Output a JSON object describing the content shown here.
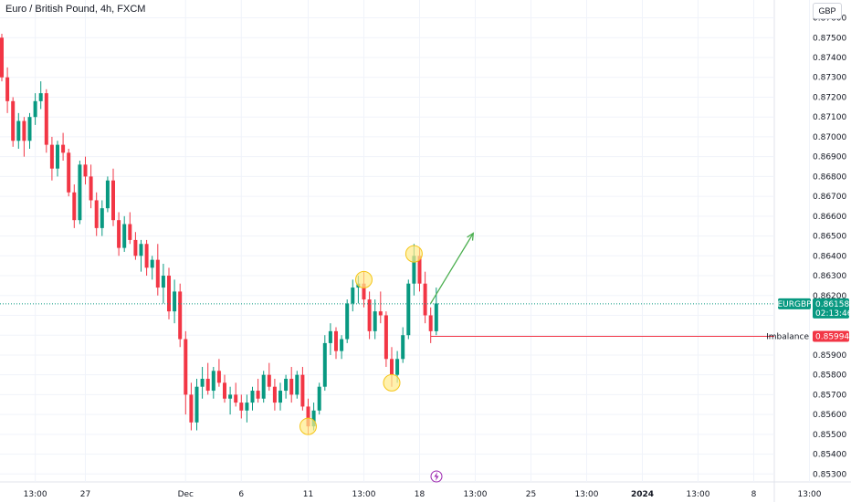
{
  "header": {
    "title": "Euro / British Pound, 4h, FXCM",
    "currency_button": "GBP"
  },
  "chart_data": {
    "type": "candlestick",
    "symbol": "EURGBP",
    "y_ticks": [
      0.853,
      0.854,
      0.855,
      0.856,
      0.857,
      0.858,
      0.859,
      0.86,
      0.861,
      0.862,
      0.863,
      0.864,
      0.865,
      0.866,
      0.867,
      0.868,
      0.869,
      0.87,
      0.871,
      0.872,
      0.873,
      0.874,
      0.875,
      0.876
    ],
    "y_tick_labels": [
      "0.85300",
      "0.85400",
      "0.85500",
      "0.85600",
      "0.85700",
      "0.85800",
      "0.85900",
      "0.86000",
      "0.86100",
      "0.86200",
      "0.86300",
      "0.86400",
      "0.86500",
      "0.86600",
      "0.86700",
      "0.86800",
      "0.86900",
      "0.87000",
      "0.87100",
      "0.87200",
      "0.87300",
      "0.87400",
      "0.87500",
      "0.87600"
    ],
    "ylim": [
      0.8526,
      0.8769
    ],
    "x_ticks": [
      {
        "label": "13:00",
        "i": 6,
        "bold": false
      },
      {
        "label": "27",
        "i": 15,
        "bold": false
      },
      {
        "label": "Dec",
        "i": 33,
        "bold": false
      },
      {
        "label": "6",
        "i": 43,
        "bold": false
      },
      {
        "label": "11",
        "i": 55,
        "bold": false
      },
      {
        "label": "13:00",
        "i": 65,
        "bold": false
      },
      {
        "label": "18",
        "i": 75,
        "bold": false
      },
      {
        "label": "13:00",
        "i": 85,
        "bold": false
      },
      {
        "label": "25",
        "i": 95,
        "bold": false
      },
      {
        "label": "13:00",
        "i": 105,
        "bold": false
      },
      {
        "label": "2024",
        "i": 115,
        "bold": true
      },
      {
        "label": "13:00",
        "i": 125,
        "bold": false
      },
      {
        "label": "8",
        "i": 135,
        "bold": false
      },
      {
        "label": "13:00",
        "i": 145,
        "bold": false
      }
    ],
    "candles": [
      [
        0.875,
        0.8752,
        0.8728,
        0.873
      ],
      [
        0.873,
        0.8735,
        0.8712,
        0.8718
      ],
      [
        0.8718,
        0.872,
        0.8695,
        0.8698
      ],
      [
        0.8698,
        0.8712,
        0.8694,
        0.8708
      ],
      [
        0.8708,
        0.871,
        0.869,
        0.8698
      ],
      [
        0.8698,
        0.8712,
        0.8694,
        0.871
      ],
      [
        0.871,
        0.8722,
        0.8706,
        0.8718
      ],
      [
        0.8718,
        0.8728,
        0.8714,
        0.8722
      ],
      [
        0.8722,
        0.8724,
        0.8692,
        0.8696
      ],
      [
        0.8696,
        0.87,
        0.8678,
        0.8684
      ],
      [
        0.8684,
        0.8698,
        0.868,
        0.8696
      ],
      [
        0.8696,
        0.8702,
        0.8688,
        0.8692
      ],
      [
        0.8692,
        0.8694,
        0.867,
        0.8672
      ],
      [
        0.8672,
        0.8676,
        0.8654,
        0.8658
      ],
      [
        0.8658,
        0.8688,
        0.8656,
        0.8686
      ],
      [
        0.8686,
        0.869,
        0.8676,
        0.868
      ],
      [
        0.868,
        0.8686,
        0.8664,
        0.8668
      ],
      [
        0.8668,
        0.8672,
        0.865,
        0.8654
      ],
      [
        0.8654,
        0.8668,
        0.865,
        0.8664
      ],
      [
        0.8664,
        0.868,
        0.8662,
        0.8678
      ],
      [
        0.8678,
        0.8684,
        0.8655,
        0.8658
      ],
      [
        0.8658,
        0.8662,
        0.864,
        0.8644
      ],
      [
        0.8644,
        0.866,
        0.8642,
        0.8656
      ],
      [
        0.8656,
        0.8662,
        0.8646,
        0.8648
      ],
      [
        0.8648,
        0.8652,
        0.8638,
        0.864
      ],
      [
        0.864,
        0.8648,
        0.8632,
        0.8646
      ],
      [
        0.8646,
        0.8648,
        0.863,
        0.8634
      ],
      [
        0.8634,
        0.864,
        0.8628,
        0.8638
      ],
      [
        0.8638,
        0.8646,
        0.862,
        0.8624
      ],
      [
        0.8624,
        0.8636,
        0.8616,
        0.863
      ],
      [
        0.863,
        0.8634,
        0.8608,
        0.8612
      ],
      [
        0.8612,
        0.8628,
        0.8606,
        0.8622
      ],
      [
        0.8622,
        0.8626,
        0.8594,
        0.8598
      ],
      [
        0.8598,
        0.8602,
        0.856,
        0.857
      ],
      [
        0.857,
        0.8576,
        0.8552,
        0.8556
      ],
      [
        0.8556,
        0.8578,
        0.8552,
        0.8574
      ],
      [
        0.8574,
        0.8584,
        0.8568,
        0.8578
      ],
      [
        0.8578,
        0.8586,
        0.857,
        0.8572
      ],
      [
        0.8572,
        0.8584,
        0.8568,
        0.8582
      ],
      [
        0.8582,
        0.8588,
        0.8574,
        0.8576
      ],
      [
        0.8576,
        0.858,
        0.8566,
        0.8568
      ],
      [
        0.8568,
        0.8574,
        0.856,
        0.857
      ],
      [
        0.857,
        0.8576,
        0.8564,
        0.8566
      ],
      [
        0.8566,
        0.857,
        0.8558,
        0.8562
      ],
      [
        0.8562,
        0.857,
        0.8556,
        0.8566
      ],
      [
        0.8566,
        0.8574,
        0.8562,
        0.8572
      ],
      [
        0.8572,
        0.8578,
        0.8566,
        0.8568
      ],
      [
        0.8568,
        0.8582,
        0.8566,
        0.858
      ],
      [
        0.858,
        0.8586,
        0.8572,
        0.8574
      ],
      [
        0.8574,
        0.8578,
        0.8562,
        0.8566
      ],
      [
        0.8566,
        0.8576,
        0.8562,
        0.8572
      ],
      [
        0.8572,
        0.858,
        0.8568,
        0.8578
      ],
      [
        0.8578,
        0.8584,
        0.8566,
        0.857
      ],
      [
        0.857,
        0.8582,
        0.8568,
        0.858
      ],
      [
        0.858,
        0.8584,
        0.8562,
        0.8564
      ],
      [
        0.8564,
        0.8568,
        0.855,
        0.8554
      ],
      [
        0.8554,
        0.8566,
        0.8552,
        0.8562
      ],
      [
        0.8562,
        0.8576,
        0.856,
        0.8574
      ],
      [
        0.8574,
        0.86,
        0.8572,
        0.8596
      ],
      [
        0.8596,
        0.8606,
        0.859,
        0.8602
      ],
      [
        0.8602,
        0.8604,
        0.8588,
        0.8592
      ],
      [
        0.8592,
        0.86,
        0.8588,
        0.8598
      ],
      [
        0.8598,
        0.8618,
        0.8596,
        0.8616
      ],
      [
        0.8616,
        0.8628,
        0.8612,
        0.8624
      ],
      [
        0.8624,
        0.863,
        0.8616,
        0.8626
      ],
      [
        0.8626,
        0.8632,
        0.8614,
        0.8618
      ],
      [
        0.8618,
        0.8622,
        0.8598,
        0.8602
      ],
      [
        0.8602,
        0.8618,
        0.8598,
        0.8612
      ],
      [
        0.8612,
        0.8622,
        0.8606,
        0.861
      ],
      [
        0.861,
        0.8612,
        0.8584,
        0.8588
      ],
      [
        0.8588,
        0.8594,
        0.8574,
        0.858
      ],
      [
        0.858,
        0.8592,
        0.8576,
        0.8588
      ],
      [
        0.8588,
        0.8604,
        0.8586,
        0.86
      ],
      [
        0.86,
        0.8628,
        0.8598,
        0.8626
      ],
      [
        0.8626,
        0.8646,
        0.862,
        0.864
      ],
      [
        0.864,
        0.8644,
        0.8622,
        0.8626
      ],
      [
        0.8626,
        0.8632,
        0.8606,
        0.861
      ],
      [
        0.861,
        0.8614,
        0.8596,
        0.8602
      ],
      [
        0.8602,
        0.8624,
        0.86,
        0.8616
      ]
    ],
    "current_price": 0.86158,
    "imbalance": 0.85994,
    "annotations": {
      "symbol_label": "EURGBP",
      "price_label": "0.86158",
      "countdown": "02:13:46",
      "imbalance_label": "Imbalance",
      "imbalance_price_label": "0.85994"
    },
    "circles": [
      {
        "i": 55,
        "price": 0.8554
      },
      {
        "i": 65,
        "price": 0.8628
      },
      {
        "i": 70,
        "price": 0.8576
      },
      {
        "i": 74,
        "price": 0.8641
      }
    ],
    "arrow": {
      "from": {
        "i": 77,
        "price": 0.8616
      },
      "to": {
        "i": 83,
        "price": 0.865
      }
    },
    "colors": {
      "up": "#089981",
      "down": "#f23645",
      "arrow": "#4caf50",
      "circle_fill": "#ffeb8a",
      "circle_stroke": "#f5c518",
      "grid": "#f0f3fa",
      "imbalance_line": "#f23645",
      "current_line": "#089981",
      "lightning": "#9c27b0"
    }
  }
}
